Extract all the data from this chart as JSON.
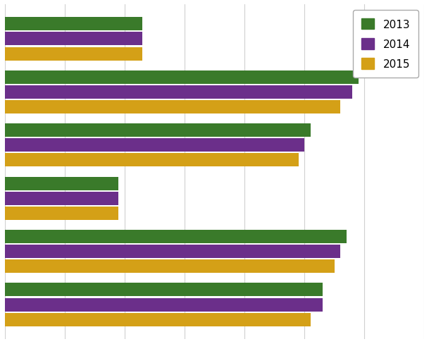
{
  "categories": [
    "",
    "",
    "",
    "",
    "",
    ""
  ],
  "series": {
    "2013": [
      26.5,
      28.5,
      9.5,
      25.5,
      29.5,
      11.5
    ],
    "2014": [
      26.5,
      28.0,
      9.5,
      25.0,
      29.0,
      11.5
    ],
    "2015": [
      25.5,
      27.5,
      9.5,
      24.5,
      28.0,
      11.5
    ]
  },
  "colors": {
    "2013": "#3a7a2a",
    "2014": "#6b2f8a",
    "2015": "#d4a017"
  },
  "xlim": [
    0,
    35
  ],
  "background_color": "#ffffff",
  "grid_color": "#d0d0d0",
  "legend_labels": [
    "2013",
    "2014",
    "2015"
  ],
  "bar_height": 0.28,
  "figsize": [
    6.09,
    4.89
  ],
  "dpi": 100
}
